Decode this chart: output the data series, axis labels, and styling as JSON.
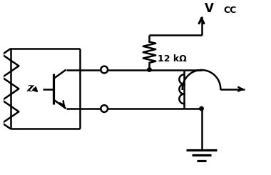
{
  "bg_color": "#ffffff",
  "line_color": "#000000",
  "line_width": 1.8,
  "vcc_label": "V",
  "vcc_sub": "CC",
  "resistor_label": "12 kΩ",
  "fig_width": 3.8,
  "fig_height": 2.45,
  "dpi": 100
}
